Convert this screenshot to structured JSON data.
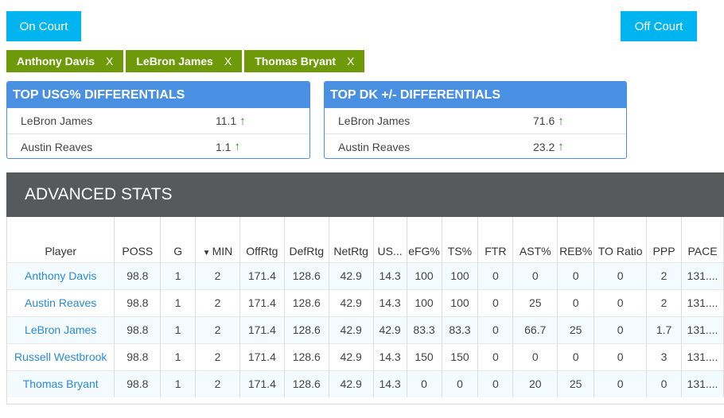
{
  "buttons": {
    "on_court": "On Court",
    "off_court": "Off Court"
  },
  "chips": [
    {
      "label": "Anthony Davis",
      "remove": "X"
    },
    {
      "label": "LeBron James",
      "remove": "X"
    },
    {
      "label": "Thomas Bryant",
      "remove": "X"
    }
  ],
  "usg_card": {
    "title": "TOP USG% DIFFERENTIALS",
    "rows": [
      {
        "name": "LeBron James",
        "value": "11.1"
      },
      {
        "name": "Austin Reaves",
        "value": "1.1"
      }
    ]
  },
  "dk_card": {
    "title": "TOP DK +/- DIFFERENTIALS",
    "rows": [
      {
        "name": "LeBron James",
        "value": "71.6"
      },
      {
        "name": "Austin Reaves",
        "value": "23.2"
      }
    ]
  },
  "advanced": {
    "title": "ADVANCED STATS",
    "sort_indicator": "▼",
    "columns": [
      "Player",
      "POSS",
      "G",
      "MIN",
      "OffRtg",
      "DefRtg",
      "NetRtg",
      "US...",
      "eFG%",
      "TS%",
      "FTR",
      "AST%",
      "REB%",
      "TO Ratio",
      "PPP",
      "PACE"
    ],
    "rows": [
      [
        "Anthony Davis",
        "98.8",
        "1",
        "2",
        "171.4",
        "128.6",
        "42.9",
        "14.3",
        "100",
        "100",
        "0",
        "0",
        "0",
        "0",
        "2",
        "131...."
      ],
      [
        "Austin Reaves",
        "98.8",
        "1",
        "2",
        "171.4",
        "128.6",
        "42.9",
        "14.3",
        "100",
        "100",
        "0",
        "25",
        "0",
        "0",
        "2",
        "131...."
      ],
      [
        "LeBron James",
        "98.8",
        "1",
        "2",
        "171.4",
        "128.6",
        "42.9",
        "42.9",
        "83.3",
        "83.3",
        "0",
        "66.7",
        "25",
        "0",
        "1.7",
        "131...."
      ],
      [
        "Russell Westbrook",
        "98.8",
        "1",
        "2",
        "171.4",
        "128.6",
        "42.9",
        "14.3",
        "150",
        "150",
        "0",
        "0",
        "0",
        "0",
        "3",
        "131...."
      ],
      [
        "Thomas Bryant",
        "98.8",
        "1",
        "2",
        "171.4",
        "128.6",
        "42.9",
        "14.3",
        "0",
        "0",
        "0",
        "20",
        "25",
        "0",
        "0",
        "131...."
      ]
    ]
  },
  "colors": {
    "accent_blue": "#00b4f0",
    "chip_green": "#6e9a0a",
    "card_blue": "#4a90e2",
    "up_arrow": "#2e8b1e",
    "header_gray": "#58595b"
  },
  "icons": {
    "up_arrow": "arrow-up-icon",
    "remove": "close-icon"
  }
}
